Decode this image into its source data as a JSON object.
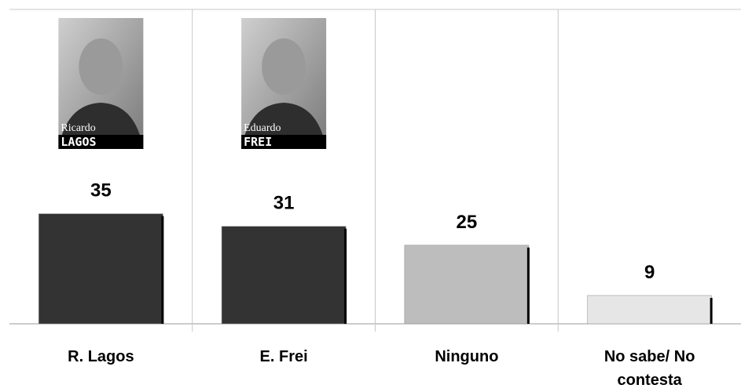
{
  "chart_data": {
    "type": "bar",
    "categories": [
      "R. Lagos",
      "E. Frei",
      "Ninguno",
      "No sabe/ No contesta"
    ],
    "values": [
      35,
      31,
      25,
      9
    ],
    "colors": [
      "#333333",
      "#333333",
      "#bdbdbd",
      "#e6e6e6"
    ],
    "ylim": [
      0,
      100
    ]
  },
  "portraits": [
    {
      "first": "Ricardo",
      "last": "LAGOS"
    },
    {
      "first": "Eduardo",
      "last": "FREI"
    }
  ]
}
